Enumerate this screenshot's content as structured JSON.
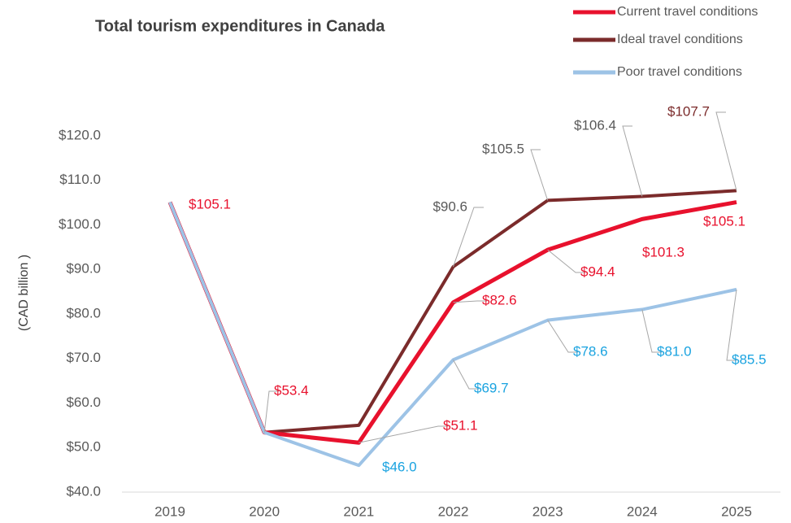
{
  "chart_data": {
    "type": "line",
    "title": "Total tourism expenditures in Canada",
    "y_label": "(CAD billion )",
    "categories": [
      "2019",
      "2020",
      "2021",
      "2022",
      "2023",
      "2024",
      "2025"
    ],
    "series": [
      {
        "name": "Current travel conditions",
        "color": "#e8112d",
        "label_color": "#e8112d",
        "values": [
          105.1,
          53.4,
          51.1,
          82.6,
          94.4,
          101.3,
          105.1
        ],
        "value_labels": [
          "$105.1",
          "$53.4",
          "$51.1",
          "$82.6",
          "$94.4",
          "$101.3",
          "$105.1"
        ]
      },
      {
        "name": "Ideal travel conditions",
        "color": "#7b2b2b",
        "label_color": "#595959",
        "values": [
          105.1,
          53.4,
          55.0,
          90.6,
          105.5,
          106.4,
          107.7
        ],
        "value_labels": [
          null,
          null,
          null,
          "$90.6",
          "$105.5",
          "$106.4",
          "$107.7"
        ],
        "value_label_colors": [
          null,
          null,
          null,
          "#595959",
          "#595959",
          "#595959",
          "#7b2b2b"
        ]
      },
      {
        "name": "Poor travel conditions",
        "color": "#9dc3e6",
        "label_color": "#1aa3e0",
        "values": [
          105.1,
          53.4,
          46.0,
          69.7,
          78.6,
          81.0,
          85.5
        ],
        "value_labels": [
          null,
          null,
          "$46.0",
          "$69.7",
          "$78.6",
          "$81.0",
          "$85.5"
        ]
      }
    ],
    "ylim": [
      40,
      120
    ],
    "yticks": [
      {
        "value": 40,
        "label": "$40.0"
      },
      {
        "value": 50,
        "label": "$50.0"
      },
      {
        "value": 60,
        "label": "$60.0"
      },
      {
        "value": 70,
        "label": "$70.0"
      },
      {
        "value": 80,
        "label": "$80.0"
      },
      {
        "value": 90,
        "label": "$90.0"
      },
      {
        "value": 100,
        "label": "$100.0"
      },
      {
        "value": 110,
        "label": "$110.0"
      },
      {
        "value": 120,
        "label": "$120.0"
      }
    ],
    "legend": "top-right",
    "grid": false
  }
}
